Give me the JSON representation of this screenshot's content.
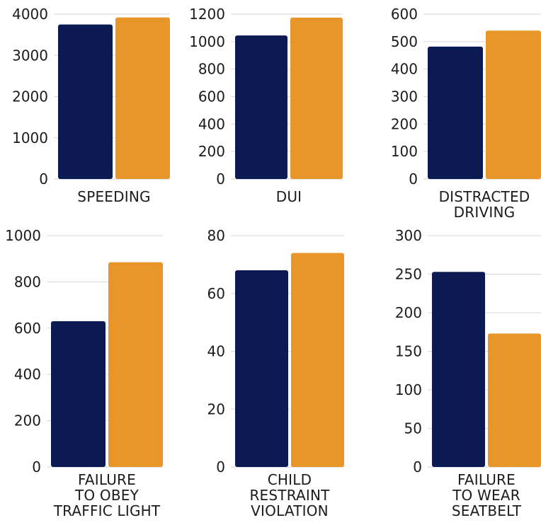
{
  "colors": {
    "series_a": "#0b1a52",
    "series_b": "#e8962a"
  },
  "chart_data": [
    {
      "type": "bar",
      "categories": [
        "SPEEDING"
      ],
      "series": [
        {
          "values": [
            3750
          ]
        },
        {
          "values": [
            3920
          ]
        }
      ],
      "ylim": [
        0,
        4000
      ],
      "yticks": [
        0,
        1000,
        2000,
        3000,
        4000
      ]
    },
    {
      "type": "bar",
      "categories": [
        "DUI"
      ],
      "series": [
        {
          "values": [
            1045
          ]
        },
        {
          "values": [
            1175
          ]
        }
      ],
      "ylim": [
        0,
        1200
      ],
      "yticks": [
        0,
        200,
        400,
        600,
        800,
        1000,
        1200
      ]
    },
    {
      "type": "bar",
      "categories": [
        "DISTRACTED DRIVING"
      ],
      "series": [
        {
          "values": [
            482
          ]
        },
        {
          "values": [
            540
          ]
        }
      ],
      "ylim": [
        0,
        600
      ],
      "yticks": [
        0,
        100,
        200,
        300,
        400,
        500,
        600
      ]
    },
    {
      "type": "bar",
      "categories": [
        "FAILURE TO OBEY TRAFFIC LIGHT"
      ],
      "series": [
        {
          "values": [
            630
          ]
        },
        {
          "values": [
            885
          ]
        }
      ],
      "ylim": [
        0,
        1000
      ],
      "yticks": [
        0,
        200,
        400,
        600,
        800,
        1000
      ]
    },
    {
      "type": "bar",
      "categories": [
        "CHILD RESTRAINT VIOLATION"
      ],
      "series": [
        {
          "values": [
            68
          ]
        },
        {
          "values": [
            74
          ]
        }
      ],
      "ylim": [
        0,
        80
      ],
      "yticks": [
        0,
        20,
        40,
        60,
        80
      ]
    },
    {
      "type": "bar",
      "categories": [
        "FAILURE TO WEAR SEATBELT"
      ],
      "series": [
        {
          "values": [
            253
          ]
        },
        {
          "values": [
            173
          ]
        }
      ],
      "ylim": [
        0,
        300
      ],
      "yticks": [
        0,
        50,
        100,
        150,
        200,
        250,
        300
      ]
    }
  ]
}
